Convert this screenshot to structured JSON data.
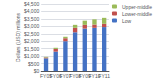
{
  "chart_data": {
    "type": "bar",
    "stacked": true,
    "categories": [
      "FY05",
      "FY06",
      "FY07",
      "FY08",
      "FY09",
      "FY10",
      "FY11"
    ],
    "series": [
      {
        "name": "Low",
        "color": "#4472c4",
        "values": [
          850,
          1300,
          2000,
          2600,
          2850,
          2900,
          2950
        ]
      },
      {
        "name": "Lower-middle",
        "color": "#c0504d",
        "values": [
          60,
          180,
          200,
          300,
          250,
          220,
          220
        ]
      },
      {
        "name": "Upper-middle",
        "color": "#9bbb59",
        "values": [
          40,
          80,
          100,
          200,
          280,
          350,
          400
        ]
      }
    ],
    "ylabel": "Dollars (USD) millions",
    "ylim": [
      0,
      4500
    ],
    "yticks": [
      {
        "value": 0,
        "label": "$0"
      },
      {
        "value": 500,
        "label": "$500"
      },
      {
        "value": 1000,
        "label": "$1,000"
      },
      {
        "value": 1500,
        "label": "$1,500"
      },
      {
        "value": 2000,
        "label": "$2,000"
      },
      {
        "value": 2500,
        "label": "$2,500"
      },
      {
        "value": 3000,
        "label": "$3,000"
      },
      {
        "value": 3500,
        "label": "$3,500"
      },
      {
        "value": 4000,
        "label": "$4,000"
      },
      {
        "value": 4500,
        "label": "$4,500"
      }
    ],
    "grid": true,
    "legend": "upper right"
  }
}
